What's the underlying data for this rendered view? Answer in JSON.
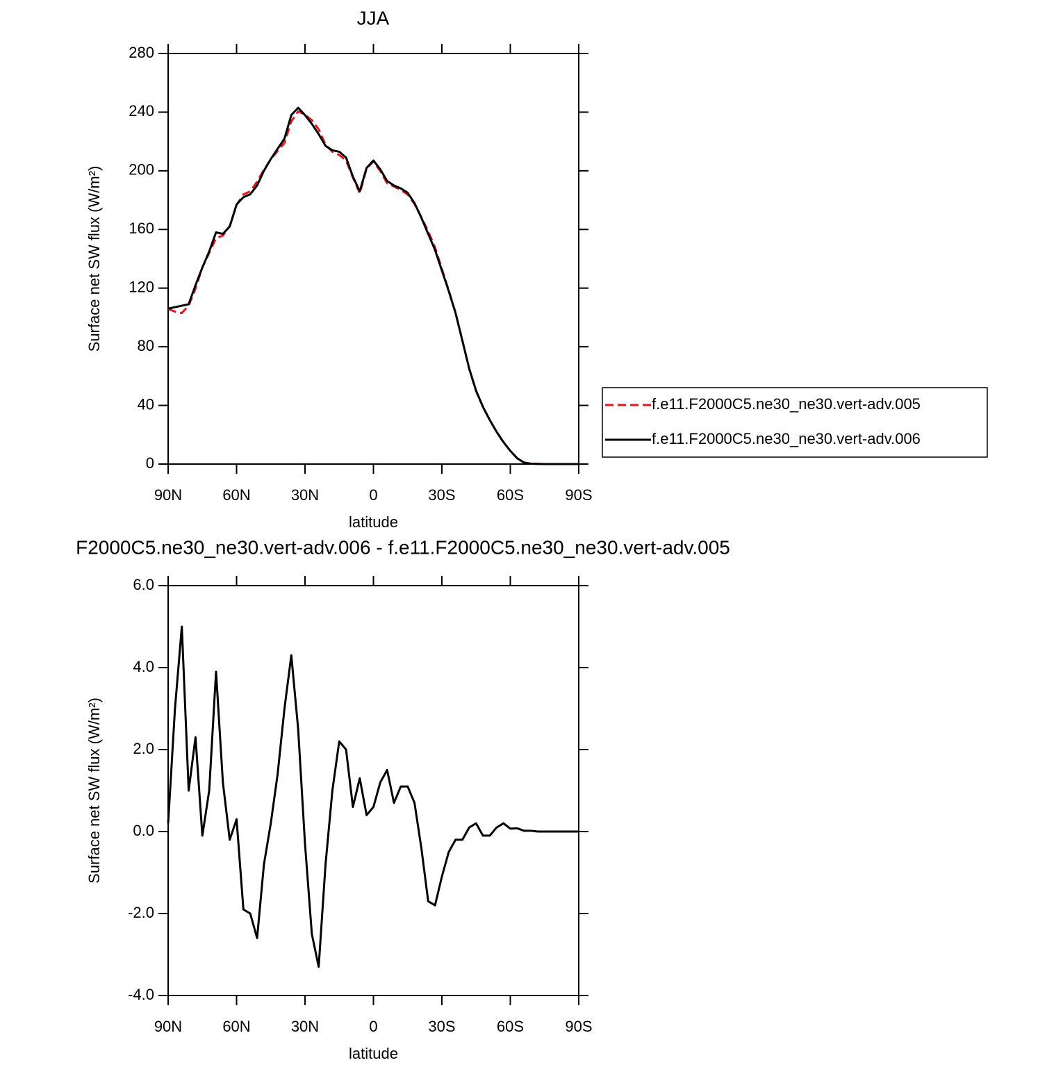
{
  "chart_data": [
    {
      "type": "line",
      "title": "JJA",
      "xlabel": "latitude",
      "ylabel": "Surface net SW flux (W/m²)",
      "x": [
        90,
        87,
        84,
        81,
        78,
        75,
        72,
        69,
        66,
        63,
        60,
        57,
        54,
        51,
        48,
        45,
        42,
        39,
        36,
        33,
        30,
        27,
        24,
        21,
        18,
        15,
        12,
        9,
        6,
        3,
        0,
        -3,
        -6,
        -9,
        -12,
        -15,
        -18,
        -21,
        -24,
        -27,
        -30,
        -33,
        -36,
        -39,
        -42,
        -45,
        -48,
        -51,
        -54,
        -57,
        -60,
        -63,
        -66,
        -69,
        -72,
        -75,
        -78,
        -81,
        -84,
        -87,
        -90
      ],
      "xlim": [
        90,
        -90
      ],
      "xticks": [
        {
          "value": 90,
          "label": "90N"
        },
        {
          "value": 60,
          "label": "60N"
        },
        {
          "value": 30,
          "label": "30N"
        },
        0,
        {
          "value": -30,
          "label": "30S"
        },
        {
          "value": -60,
          "label": "60S"
        },
        {
          "value": -90,
          "label": "90S"
        }
      ],
      "ylim": [
        0,
        280
      ],
      "yticks": [
        0,
        40,
        80,
        120,
        160,
        200,
        240,
        280
      ],
      "legend": "right",
      "series": [
        {
          "name": "f.e11.F2000C5.ne30_ne30.vert-adv.005",
          "color": "#e8141b",
          "dash": "dashed",
          "values": [
            105.8,
            104,
            103,
            108,
            119.7,
            134.1,
            144,
            154.1,
            155.8,
            162.2,
            176.7,
            183.9,
            186,
            192.6,
            200.8,
            207.8,
            213.6,
            219,
            233.7,
            240.5,
            238.3,
            234.5,
            228.3,
            217.8,
            213,
            210.8,
            207,
            195.4,
            184.7,
            201.6,
            206.4,
            199.8,
            191.5,
            189.3,
            186.9,
            183.9,
            177.3,
            168.4,
            158.7,
            147.8,
            133.1,
            118.5,
            103.2,
            84.2,
            64.9,
            49.8,
            39.1,
            30.1,
            21.9,
            14.8,
            8.93,
            3.92,
            0.98,
            0.28,
            0.1,
            0,
            0,
            0,
            0,
            0,
            0
          ]
        },
        {
          "name": "f.e11.F2000C5.ne30_ne30.vert-adv.006",
          "color": "#000000",
          "dash": "solid",
          "values": [
            106,
            107,
            108,
            109,
            122,
            134,
            145,
            158,
            157,
            162,
            177,
            182,
            184,
            190,
            200,
            208,
            215,
            222,
            238,
            243,
            238,
            232,
            225,
            217,
            214,
            213,
            209,
            196,
            186,
            202,
            207,
            201,
            193,
            190,
            188,
            185,
            178,
            168,
            157,
            146,
            132,
            118,
            103,
            84,
            65,
            50,
            39,
            30,
            22,
            15,
            9,
            4,
            1,
            0.3,
            0.1,
            0,
            0,
            0,
            0,
            0,
            0
          ]
        }
      ]
    },
    {
      "type": "line",
      "title": "F2000C5.ne30_ne30.vert-adv.006 - f.e11.F2000C5.ne30_ne30.vert-adv.005",
      "xlabel": "latitude",
      "ylabel": "Surface net SW flux (W/m²)",
      "x": [
        90,
        87,
        84,
        81,
        78,
        75,
        72,
        69,
        66,
        63,
        60,
        57,
        54,
        51,
        48,
        45,
        42,
        39,
        36,
        33,
        30,
        27,
        24,
        21,
        18,
        15,
        12,
        9,
        6,
        3,
        0,
        -3,
        -6,
        -9,
        -12,
        -15,
        -18,
        -21,
        -24,
        -27,
        -30,
        -33,
        -36,
        -39,
        -42,
        -45,
        -48,
        -51,
        -54,
        -57,
        -60,
        -63,
        -66,
        -69,
        -72,
        -75,
        -78,
        -81,
        -84,
        -87,
        -90
      ],
      "xlim": [
        90,
        -90
      ],
      "xticks": [
        {
          "value": 90,
          "label": "90N"
        },
        {
          "value": 60,
          "label": "60N"
        },
        {
          "value": 30,
          "label": "30N"
        },
        0,
        {
          "value": -30,
          "label": "30S"
        },
        {
          "value": -60,
          "label": "60S"
        },
        {
          "value": -90,
          "label": "90S"
        }
      ],
      "ylim": [
        -4,
        6
      ],
      "yticks": [
        {
          "value": -4,
          "label": "-4.0"
        },
        {
          "value": -2,
          "label": "-2.0"
        },
        {
          "value": 0,
          "label": "0.0"
        },
        {
          "value": 2,
          "label": "2.0"
        },
        {
          "value": 4,
          "label": "4.0"
        },
        {
          "value": 6,
          "label": "6.0"
        }
      ],
      "color": "#000000",
      "values": [
        0.2,
        3.0,
        5.0,
        1.0,
        2.3,
        -0.1,
        1.0,
        3.9,
        1.2,
        -0.2,
        0.3,
        -1.9,
        -2.0,
        -2.6,
        -0.8,
        0.2,
        1.4,
        3.0,
        4.3,
        2.5,
        -0.3,
        -2.5,
        -3.3,
        -0.8,
        1.0,
        2.2,
        2.0,
        0.6,
        1.3,
        0.4,
        0.6,
        1.2,
        1.5,
        0.7,
        1.1,
        1.1,
        0.7,
        -0.4,
        -1.7,
        -1.8,
        -1.1,
        -0.5,
        -0.2,
        -0.2,
        0.1,
        0.2,
        -0.1,
        -0.1,
        0.1,
        0.2,
        0.07,
        0.08,
        0.02,
        0.02,
        0,
        0,
        0,
        0,
        0,
        0,
        0
      ]
    }
  ]
}
